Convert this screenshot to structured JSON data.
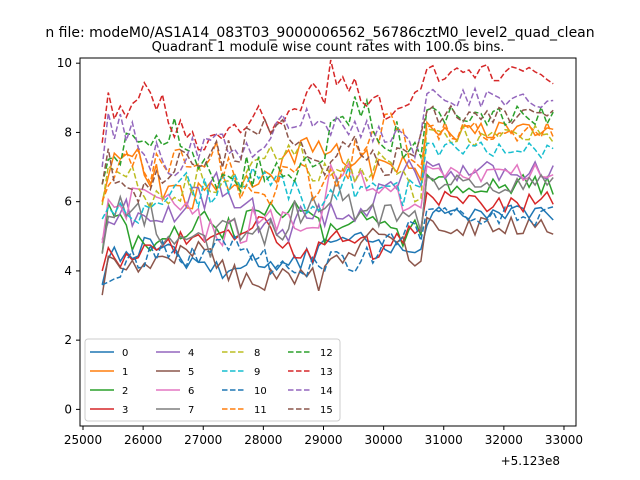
{
  "chart_data": {
    "type": "line",
    "suptitle": "n file: modeM0/AS1A14_083T03_9000006562_56786cztM0_level2_quad_clean",
    "title": "Quadrant 1 module wise count rates with 100.0s bins.",
    "xlabel": "",
    "ylabel": "",
    "x_offset_label": "+5.123e8",
    "xlim": [
      24950,
      33200
    ],
    "ylim": [
      -0.48,
      10.15
    ],
    "x_ticks": [
      25000,
      26000,
      27000,
      28000,
      29000,
      30000,
      31000,
      32000,
      33000
    ],
    "x_tick_labels": [
      "25000",
      "26000",
      "27000",
      "28000",
      "29000",
      "30000",
      "31000",
      "32000",
      "33000"
    ],
    "y_ticks": [
      0,
      2,
      4,
      6,
      8,
      10
    ],
    "y_tick_labels": [
      "0",
      "2",
      "4",
      "6",
      "8",
      "10"
    ],
    "x_start": 25320,
    "x_step": 100,
    "gap_profile": [
      [
        30700,
        1.0
      ],
      [
        30800,
        0.9
      ],
      [
        30900,
        0.4
      ],
      [
        31000,
        0.0
      ],
      [
        31100,
        0.0
      ],
      [
        31200,
        0.0
      ],
      [
        31300,
        0.0
      ],
      [
        31400,
        0.15
      ],
      [
        31500,
        0.98
      ],
      [
        31600,
        0.92
      ],
      [
        31700,
        0.25
      ],
      [
        31800,
        0.85
      ],
      [
        31900,
        0.98
      ],
      [
        32000,
        0.95
      ],
      [
        32100,
        0.95
      ],
      [
        32200,
        0.96
      ],
      [
        32300,
        0.95
      ],
      [
        32400,
        0.96
      ],
      [
        32500,
        0.96
      ],
      [
        32600,
        0.96
      ],
      [
        32700,
        0.95
      ],
      [
        32800,
        0.9
      ],
      [
        32900,
        0.02
      ]
    ],
    "legend": {
      "location": "lower-left",
      "columns": 4
    },
    "series": [
      {
        "name": "0",
        "color": "#1f77b4",
        "dash": false,
        "base": 4.4,
        "seed": 1,
        "variation": 0.5
      },
      {
        "name": "1",
        "color": "#ff7f0e",
        "dash": false,
        "base": 6.8,
        "seed": 2,
        "variation": 0.8
      },
      {
        "name": "2",
        "color": "#2ca02c",
        "dash": false,
        "base": 5.3,
        "seed": 3,
        "variation": 0.7
      },
      {
        "name": "3",
        "color": "#d62728",
        "dash": false,
        "base": 4.8,
        "seed": 4,
        "variation": 0.6
      },
      {
        "name": "4",
        "color": "#9467bd",
        "dash": false,
        "base": 5.7,
        "seed": 5,
        "variation": 0.8
      },
      {
        "name": "5",
        "color": "#8c564b",
        "dash": false,
        "base": 4.1,
        "seed": 6,
        "variation": 0.6
      },
      {
        "name": "6",
        "color": "#e377c2",
        "dash": false,
        "base": 5.6,
        "seed": 7,
        "variation": 0.9
      },
      {
        "name": "7",
        "color": "#7f7f7f",
        "dash": false,
        "base": 5.3,
        "seed": 8,
        "variation": 0.8
      },
      {
        "name": "8",
        "color": "#bcbd22",
        "dash": true,
        "base": 6.7,
        "seed": 9,
        "variation": 0.8
      },
      {
        "name": "9",
        "color": "#17becf",
        "dash": true,
        "base": 6.3,
        "seed": 10,
        "variation": 0.8
      },
      {
        "name": "10",
        "color": "#1f77b4",
        "dash": true,
        "base": 4.4,
        "seed": 11,
        "variation": 0.6
      },
      {
        "name": "11",
        "color": "#ff7f0e",
        "dash": true,
        "base": 6.8,
        "seed": 12,
        "variation": 0.9
      },
      {
        "name": "12",
        "color": "#2ca02c",
        "dash": true,
        "base": 7.3,
        "seed": 13,
        "variation": 0.9
      },
      {
        "name": "13",
        "color": "#d62728",
        "dash": true,
        "base": 8.5,
        "seed": 14,
        "variation": 0.8
      },
      {
        "name": "14",
        "color": "#9467bd",
        "dash": true,
        "base": 7.8,
        "seed": 15,
        "variation": 0.8
      },
      {
        "name": "15",
        "color": "#8c564b",
        "dash": true,
        "base": 7.3,
        "seed": 16,
        "variation": 0.9
      }
    ]
  }
}
